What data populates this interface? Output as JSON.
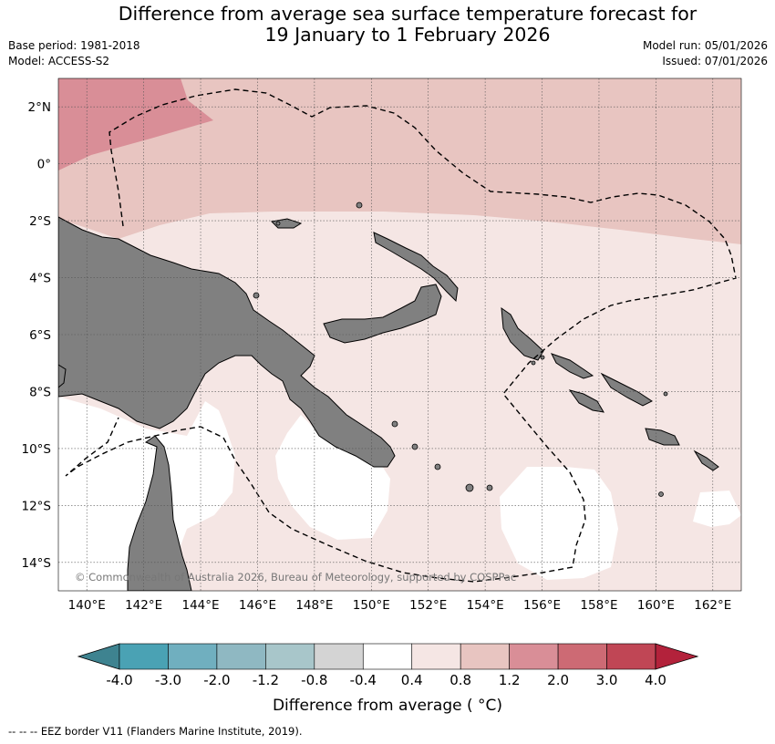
{
  "title": {
    "line1": "Difference from average sea surface temperature forecast for",
    "line2": "19 January to 1 February 2026"
  },
  "meta": {
    "base_period": "Base period: 1981-2018",
    "model": "Model: ACCESS-S2",
    "model_run": "Model run: 05/01/2026",
    "issued": "Issued: 07/01/2026"
  },
  "map": {
    "lon_labels": [
      "140°E",
      "142°E",
      "144°E",
      "146°E",
      "148°E",
      "150°E",
      "152°E",
      "154°E",
      "156°E",
      "158°E",
      "160°E",
      "162°E"
    ],
    "lat_labels": [
      "2°N",
      "0°",
      "2°S",
      "4°S",
      "6°S",
      "8°S",
      "10°S",
      "12°S",
      "14°S"
    ],
    "copyright": "© Commonwealth of Australia 2026, Bureau of Meteorology, supported by COSPPac",
    "land_color": "#808080"
  },
  "colorbar": {
    "colors": [
      "#3e8390",
      "#4aa2b4",
      "#70afbf",
      "#8fb8c2",
      "#a8c6ca",
      "#d4d4d4",
      "#ffffff",
      "#f5e6e4",
      "#e8c5c1",
      "#d98e97",
      "#cd6a74",
      "#c04655",
      "#b3223b"
    ],
    "labels": [
      "-4.0",
      "-3.0",
      "-2.0",
      "-1.2",
      "-0.8",
      "-0.4",
      "0.4",
      "0.8",
      "1.2",
      "2.0",
      "3.0",
      "4.0"
    ],
    "title": "Difference from average ( °C)"
  },
  "footnote": "--  --  -- EEZ border V11 (Flanders Marine Institute, 2019)."
}
